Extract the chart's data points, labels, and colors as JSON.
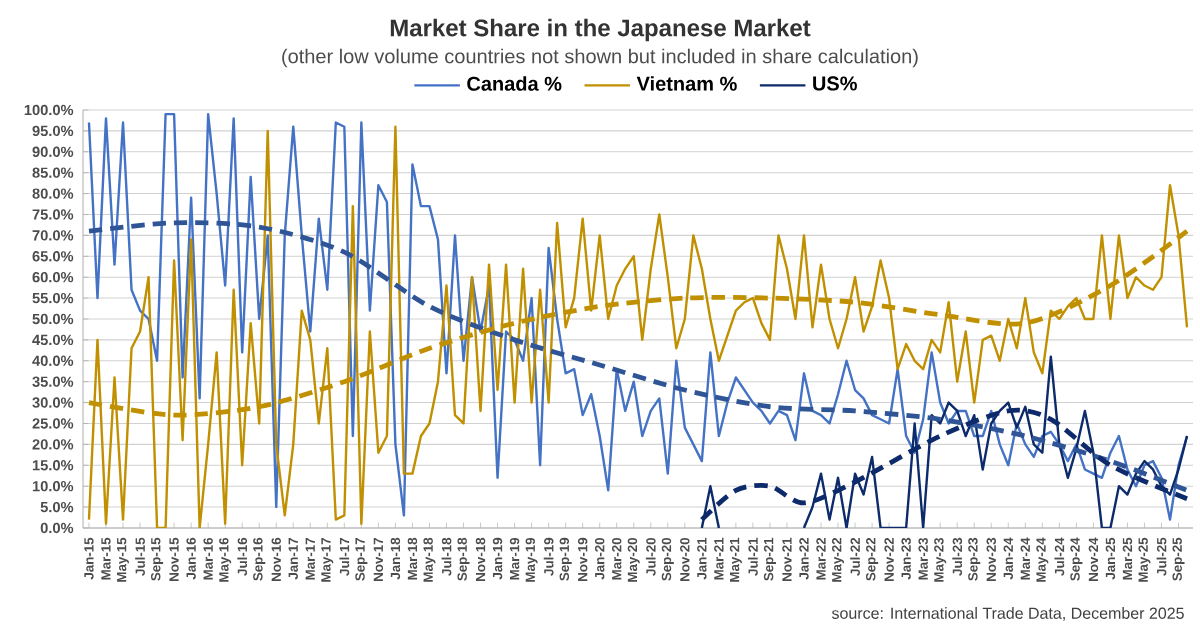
{
  "chart_data": {
    "type": "line",
    "title": "Market Share in the Japanese Market",
    "subtitle": "(other low volume countries not shown but included in share calculation)",
    "annotations": [
      "source: International Trade Data, December 2025"
    ],
    "categories": [
      "Jan-15",
      null,
      "Mar-15",
      null,
      "May-15",
      null,
      "Jul-15",
      null,
      "Sep-15",
      null,
      "Nov-15",
      null,
      "Jan-16",
      null,
      "Mar-16",
      null,
      "May-16",
      null,
      "Jul-16",
      null,
      "Sep-16",
      null,
      "Nov-16",
      null,
      "Jan-17",
      null,
      "Mar-17",
      null,
      "May-17",
      null,
      "Jul-17",
      null,
      "Sep-17",
      null,
      "Nov-17",
      null,
      "Jan-18",
      null,
      "Mar-18",
      null,
      "May-18",
      null,
      "Jul-18",
      null,
      "Sep-18",
      null,
      "Nov-18",
      null,
      "Jan-19",
      null,
      "Mar-19",
      null,
      "May-19",
      null,
      "Jul-19",
      null,
      "Sep-19",
      null,
      "Nov-19",
      null,
      "Jan-20",
      null,
      "Mar-20",
      null,
      "May-20",
      null,
      "Jul-20",
      null,
      "Sep-20",
      null,
      "Nov-20",
      null,
      "Jan-21",
      null,
      "Mar-21",
      null,
      "May-21",
      null,
      "Jul-21",
      null,
      "Sep-21",
      null,
      "Nov-21",
      null,
      "Jan-22",
      null,
      "Mar-22",
      null,
      "May-22",
      null,
      "Jul-22",
      null,
      "Sep-22",
      null,
      "Nov-22",
      null,
      "Jan-23",
      null,
      "Mar-23",
      null,
      "May-23",
      null,
      "Jul-23",
      null,
      "Sep-23",
      null,
      "Nov-23",
      null,
      "Jan-24",
      null,
      "Mar-24",
      null,
      "May-24",
      null,
      "Jul-24",
      null,
      "Sep-24",
      null,
      "Nov-24",
      null,
      "Jan-25",
      null,
      "Mar-25",
      null,
      "May-25",
      null,
      "Jul-25",
      null,
      "Sep-25",
      null
    ],
    "ylim": [
      0,
      100
    ],
    "yticks": [
      {
        "value": 0,
        "label": "0.0%"
      },
      {
        "value": 5,
        "label": "5.0%"
      },
      {
        "value": 10,
        "label": "10.0%"
      },
      {
        "value": 15,
        "label": "15.0%"
      },
      {
        "value": 20,
        "label": "20.0%"
      },
      {
        "value": 25,
        "label": "25.0%"
      },
      {
        "value": 30,
        "label": "30.0%"
      },
      {
        "value": 35,
        "label": "35.0%"
      },
      {
        "value": 40,
        "label": "40.0%"
      },
      {
        "value": 45,
        "label": "45.0%"
      },
      {
        "value": 50,
        "label": "50.0%"
      },
      {
        "value": 55,
        "label": "55.0%"
      },
      {
        "value": 60,
        "label": "60.0%"
      },
      {
        "value": 65,
        "label": "65.0%"
      },
      {
        "value": 70,
        "label": "70.0%"
      },
      {
        "value": 75,
        "label": "75.0%"
      },
      {
        "value": 80,
        "label": "80.0%"
      },
      {
        "value": 85,
        "label": "85.0%"
      },
      {
        "value": 90,
        "label": "90.0%"
      },
      {
        "value": 95,
        "label": "95.0%"
      },
      {
        "value": 100,
        "label": "100.0%"
      }
    ],
    "grid": "y",
    "legend": "top",
    "marker": "none",
    "series": [
      {
        "name": "Canada %",
        "color": "#4472c4",
        "line_style": "solid",
        "values": [
          97,
          55,
          98,
          63,
          97,
          57,
          52,
          50,
          40,
          99,
          99,
          36,
          79,
          31,
          99,
          80,
          58,
          98,
          42,
          84,
          50,
          70,
          5,
          70,
          96,
          70,
          47,
          74,
          57,
          97,
          96,
          22,
          97,
          52,
          82,
          78,
          20,
          3,
          87,
          77,
          77,
          69,
          37,
          70,
          40,
          60,
          47,
          58,
          12,
          47,
          45,
          40,
          55,
          15,
          67,
          50,
          37,
          38,
          27,
          32,
          22,
          9,
          38,
          28,
          35,
          22,
          28,
          31,
          13,
          40,
          24,
          20,
          16,
          42,
          22,
          30,
          36,
          33,
          30,
          28,
          25,
          28,
          27,
          21,
          37,
          28,
          27,
          25,
          32,
          40,
          33,
          31,
          27,
          26,
          25,
          38,
          22,
          18,
          26,
          42,
          30,
          25,
          28,
          28,
          22,
          22,
          28,
          20,
          15,
          25,
          20,
          17,
          22,
          23,
          20,
          16,
          20,
          14,
          13,
          12,
          18,
          22,
          14,
          10,
          15,
          16,
          12,
          2,
          15,
          22
        ]
      },
      {
        "name": "Vietnam %",
        "color": "#c09000",
        "line_style": "solid",
        "values": [
          2,
          45,
          1,
          36,
          2,
          43,
          47,
          60,
          0,
          0,
          64,
          21,
          69,
          0,
          20,
          42,
          1,
          57,
          15,
          49,
          25,
          95,
          20,
          3,
          20,
          52,
          45,
          25,
          43,
          2,
          3,
          77,
          1,
          47,
          18,
          22,
          96,
          13,
          13,
          22,
          25,
          35,
          58,
          27,
          25,
          60,
          28,
          63,
          33,
          63,
          30,
          62,
          30,
          57,
          30,
          73,
          48,
          55,
          74,
          52,
          70,
          50,
          58,
          62,
          65,
          45,
          62,
          75,
          60,
          43,
          50,
          70,
          62,
          50,
          40,
          46,
          52,
          54,
          55,
          49,
          45,
          70,
          62,
          50,
          70,
          48,
          63,
          50,
          43,
          50,
          60,
          47,
          53,
          64,
          55,
          38,
          44,
          40,
          38,
          45,
          42,
          54,
          35,
          47,
          30,
          45,
          46,
          40,
          50,
          43,
          55,
          42,
          37,
          52,
          50,
          53,
          55,
          50,
          50,
          70,
          50,
          70,
          55,
          60,
          58,
          57,
          60,
          82,
          70,
          48
        ]
      },
      {
        "name": "US%",
        "color": "#0d2a6b",
        "line_style": "solid",
        "values": [
          null,
          null,
          null,
          null,
          null,
          null,
          null,
          null,
          null,
          null,
          null,
          null,
          null,
          null,
          null,
          null,
          null,
          null,
          null,
          null,
          null,
          null,
          null,
          null,
          null,
          null,
          null,
          null,
          null,
          null,
          null,
          null,
          null,
          null,
          null,
          null,
          null,
          null,
          null,
          null,
          null,
          null,
          null,
          null,
          null,
          null,
          null,
          null,
          null,
          null,
          null,
          null,
          null,
          null,
          null,
          null,
          null,
          null,
          null,
          null,
          null,
          null,
          null,
          null,
          null,
          null,
          null,
          null,
          null,
          null,
          null,
          null,
          0,
          10,
          0,
          null,
          null,
          null,
          null,
          null,
          null,
          null,
          null,
          null,
          0,
          5,
          13,
          2,
          12,
          0,
          13,
          8,
          17,
          0,
          0,
          0,
          0,
          25,
          0,
          27,
          25,
          30,
          28,
          22,
          27,
          14,
          25,
          28,
          30,
          24,
          29,
          20,
          18,
          41,
          20,
          12,
          19,
          28,
          18,
          0,
          0,
          10,
          8,
          13,
          16,
          14,
          10,
          8,
          14,
          22
        ]
      },
      {
        "color": "#2f5597",
        "line_style": "dashed",
        "values": [
          71,
          null,
          null,
          null,
          null,
          null,
          null,
          null,
          null,
          null,
          73,
          null,
          null,
          null,
          null,
          null,
          null,
          null,
          null,
          null,
          72,
          null,
          null,
          null,
          null,
          null,
          null,
          null,
          null,
          null,
          66,
          null,
          null,
          null,
          null,
          null,
          null,
          null,
          null,
          null,
          53,
          null,
          null,
          null,
          null,
          null,
          null,
          null,
          null,
          null,
          45,
          null,
          null,
          null,
          null,
          null,
          null,
          null,
          null,
          null,
          39,
          null,
          null,
          null,
          null,
          null,
          null,
          null,
          null,
          null,
          33,
          null,
          null,
          null,
          null,
          null,
          null,
          null,
          null,
          null,
          29,
          null,
          null,
          null,
          null,
          null,
          null,
          null,
          null,
          null,
          28,
          null,
          null,
          null,
          null,
          null,
          null,
          null,
          null,
          null,
          26,
          null,
          null,
          null,
          null,
          null,
          null,
          null,
          null,
          null,
          22,
          null,
          null,
          null,
          null,
          null,
          null,
          null,
          null,
          null,
          16,
          null,
          null,
          null,
          null,
          null,
          null,
          null,
          null,
          9
        ]
      },
      {
        "color": "#c09000",
        "line_style": "dashed",
        "values": [
          30,
          null,
          null,
          null,
          null,
          null,
          null,
          null,
          null,
          null,
          27,
          null,
          null,
          null,
          null,
          null,
          null,
          null,
          null,
          null,
          29,
          null,
          null,
          null,
          null,
          null,
          null,
          null,
          null,
          null,
          35,
          null,
          null,
          null,
          null,
          null,
          null,
          null,
          null,
          null,
          43,
          null,
          null,
          null,
          null,
          null,
          null,
          null,
          null,
          null,
          49,
          null,
          null,
          null,
          null,
          null,
          null,
          null,
          null,
          null,
          53,
          null,
          null,
          null,
          null,
          null,
          null,
          null,
          null,
          null,
          55,
          null,
          null,
          null,
          null,
          null,
          null,
          null,
          null,
          null,
          55,
          null,
          null,
          null,
          null,
          null,
          null,
          null,
          null,
          null,
          54,
          null,
          null,
          null,
          null,
          null,
          null,
          null,
          null,
          null,
          51,
          null,
          null,
          null,
          null,
          null,
          null,
          null,
          null,
          null,
          49,
          null,
          null,
          null,
          null,
          null,
          null,
          null,
          null,
          null,
          58,
          null,
          null,
          null,
          null,
          null,
          null,
          null,
          null,
          71
        ]
      },
      {
        "color": "#0d2a6b",
        "line_style": "dashed",
        "values": [
          null,
          null,
          null,
          null,
          null,
          null,
          null,
          null,
          null,
          null,
          null,
          null,
          null,
          null,
          null,
          null,
          null,
          null,
          null,
          null,
          null,
          null,
          null,
          null,
          null,
          null,
          null,
          null,
          null,
          null,
          null,
          null,
          null,
          null,
          null,
          null,
          null,
          null,
          null,
          null,
          null,
          null,
          null,
          null,
          null,
          null,
          null,
          null,
          null,
          null,
          null,
          null,
          null,
          null,
          null,
          null,
          null,
          null,
          null,
          null,
          null,
          null,
          null,
          null,
          null,
          null,
          null,
          null,
          null,
          null,
          null,
          null,
          2,
          null,
          null,
          null,
          9,
          null,
          null,
          null,
          10,
          null,
          null,
          null,
          6,
          null,
          null,
          null,
          null,
          null,
          11,
          null,
          null,
          null,
          null,
          null,
          null,
          null,
          null,
          null,
          22,
          null,
          null,
          null,
          null,
          null,
          null,
          null,
          28,
          null,
          null,
          null,
          null,
          26,
          null,
          null,
          null,
          null,
          null,
          null,
          15,
          null,
          null,
          null,
          null,
          null,
          null,
          null,
          null,
          7
        ]
      }
    ]
  }
}
